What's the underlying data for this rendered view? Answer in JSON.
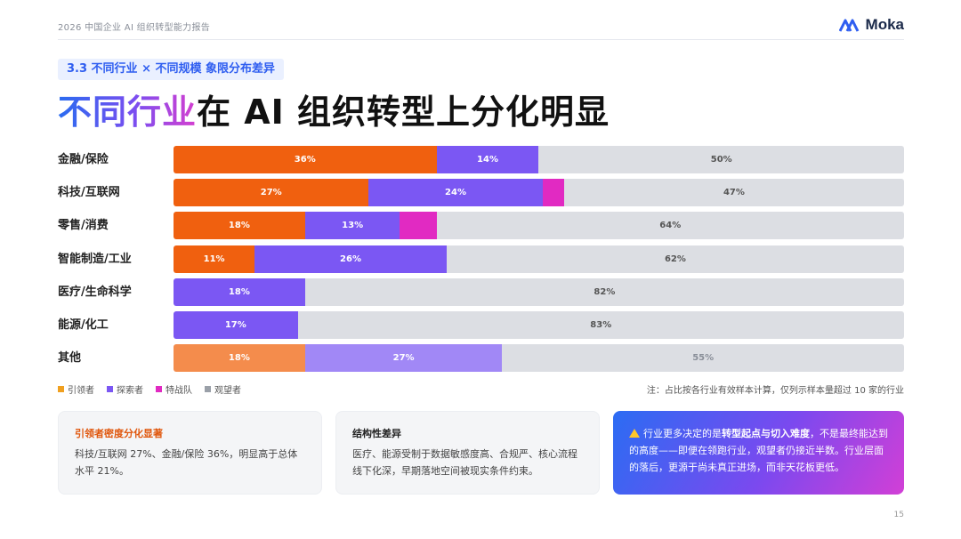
{
  "header": {
    "report_title": "2026 中国企业 AI 组织转型能力报告",
    "logo_text": "Moka"
  },
  "section_tag": "3.3   不同行业 × 不同规模 象限分布差异",
  "headline": {
    "highlight": "不同行业",
    "rest": "在 AI 组织转型上分化明显"
  },
  "colors": {
    "leader": "#f0600f",
    "explorer": "#7b57f3",
    "strike_team": "#e12ac2",
    "observer": "#dcdee3",
    "accent": "#2f5ef0"
  },
  "chart_data": {
    "type": "bar",
    "stacked": true,
    "orientation": "horizontal",
    "categories": [
      "金融/保险",
      "科技/互联网",
      "零售/消费",
      "智能制造/工业",
      "医疗/生命科学",
      "能源/化工",
      "其他"
    ],
    "series": [
      {
        "name": "引领者",
        "values": [
          36,
          27,
          18,
          11,
          0,
          0,
          18
        ]
      },
      {
        "name": "探索者",
        "values": [
          14,
          24,
          13,
          26,
          18,
          17,
          27
        ]
      },
      {
        "name": "特战队",
        "values": [
          0,
          3,
          5,
          0,
          0,
          0,
          0
        ]
      },
      {
        "name": "观望者",
        "values": [
          50,
          47,
          64,
          62,
          82,
          83,
          55
        ]
      }
    ],
    "value_labels": [
      [
        "36%",
        "14%",
        "",
        "50%"
      ],
      [
        "27%",
        "24%",
        "",
        "47%"
      ],
      [
        "18%",
        "13%",
        "",
        "64%"
      ],
      [
        "11%",
        "26%",
        "",
        "62%"
      ],
      [
        "",
        "18%",
        "",
        "82%"
      ],
      [
        "",
        "17%",
        "",
        "83%"
      ],
      [
        "18%",
        "27%",
        "",
        "55%"
      ]
    ],
    "legend_position": "bottom-left"
  },
  "legend": [
    {
      "label": "引领者",
      "color": "#f0600f"
    },
    {
      "label": "探索者",
      "color": "#7b57f3"
    },
    {
      "label": "特战队",
      "color": "#e12ac2"
    },
    {
      "label": "观望者",
      "color": "#9aa0a8"
    }
  ],
  "note": "注：占比按各行业有效样本计算，仅列示样本量超过 10 家的行业",
  "cards": [
    {
      "title": "引领者密度分化显著",
      "body": "科技/互联网 27%、金融/保险 36%，明显高于总体水平 21%。"
    },
    {
      "title": "结构性差异",
      "body": "医疗、能源受制于数据敏感度高、合规严、核心流程线下化深，早期落地空间被现实条件约束。"
    },
    {
      "body_prefix": "行业更多决定的是",
      "body_bold": "转型起点与切入难度",
      "body_suffix": "，不是最终能达到的高度——即便在领跑行业，观望者仍接近半数。行业层面的落后，更源于尚未真正进场，而非天花板更低。"
    }
  ],
  "page_number": "15"
}
